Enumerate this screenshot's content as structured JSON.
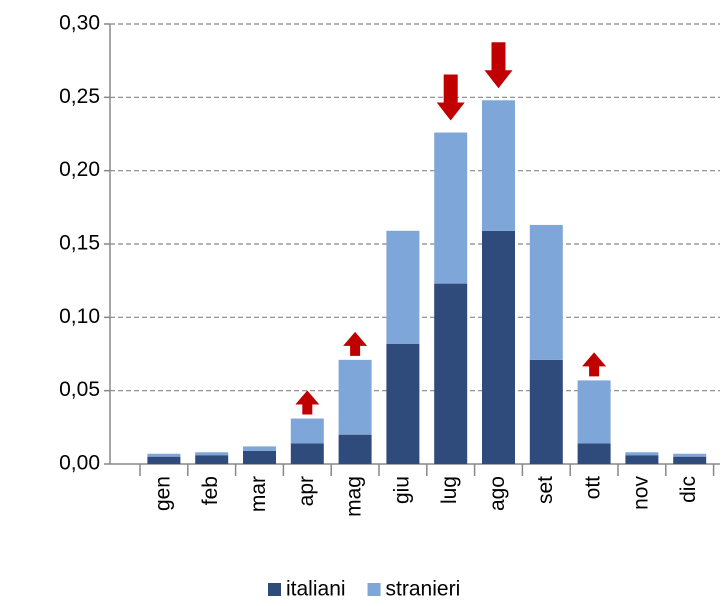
{
  "chart_data": {
    "type": "stacked-bar",
    "categories": [
      "gen",
      "feb",
      "mar",
      "apr",
      "mag",
      "giu",
      "lug",
      "ago",
      "set",
      "ott",
      "nov",
      "dic"
    ],
    "series": [
      {
        "name": "italiani",
        "color": "#2f4b7c",
        "values": [
          0.005,
          0.006,
          0.009,
          0.014,
          0.02,
          0.082,
          0.123,
          0.159,
          0.071,
          0.014,
          0.006,
          0.005
        ]
      },
      {
        "name": "stranieri",
        "color": "#7ea6d8",
        "values": [
          0.002,
          0.002,
          0.003,
          0.017,
          0.051,
          0.077,
          0.103,
          0.089,
          0.092,
          0.043,
          0.002,
          0.002
        ]
      }
    ],
    "ylim": [
      0,
      0.3
    ],
    "yticks": [
      {
        "value": 0,
        "label": "0,00"
      },
      {
        "value": 0.05,
        "label": "0,05"
      },
      {
        "value": 0.1,
        "label": "0,10"
      },
      {
        "value": 0.15,
        "label": "0,15"
      },
      {
        "value": 0.2,
        "label": "0,20"
      },
      {
        "value": 0.25,
        "label": "0,25"
      },
      {
        "value": 0.3,
        "label": "0,30"
      }
    ],
    "grid": true,
    "legend": "bottom",
    "arrows": {
      "color": "#c00000",
      "up": [
        "apr",
        "mag",
        "ott"
      ],
      "down": [
        "lug",
        "ago"
      ]
    }
  }
}
